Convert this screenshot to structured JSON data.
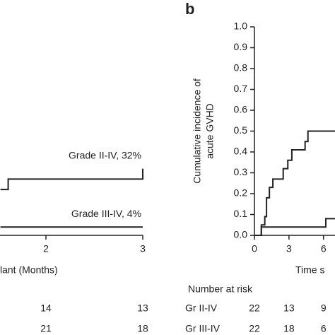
{
  "chart_data": [
    {
      "type": "line",
      "x_label": "lant (Months)",
      "xlim": [
        1,
        3
      ],
      "ylim": [
        0,
        1
      ],
      "xticks": [
        2,
        3
      ],
      "series": [
        {
          "name": "Grade II-IV, 32%",
          "color": "#222222",
          "x": [
            1.53,
            1.61,
            1.61,
            3,
            3
          ],
          "values": [
            0.22,
            0.22,
            0.27,
            0.27,
            0.32
          ]
        },
        {
          "name": "Grade III-IV, 4%",
          "color": "#222222",
          "x": [
            1.53,
            3
          ],
          "values": [
            0.04,
            0.04
          ]
        }
      ],
      "risk_table": {
        "times": [
          2,
          3
        ],
        "rows": [
          {
            "values": [
              14,
              13
            ]
          },
          {
            "values": [
              21,
              18
            ]
          }
        ]
      }
    },
    {
      "type": "line",
      "panel_label": "b",
      "y_label": [
        "Cumulative incidence of",
        "acute GVHD"
      ],
      "x_label": "Time s",
      "xlim": [
        0,
        7
      ],
      "ylim": [
        0,
        1
      ],
      "xticks": [
        0,
        3,
        6
      ],
      "yticks": [
        {
          "value": 0,
          "label": "0.0"
        },
        0.1,
        0.2,
        0.3,
        0.4,
        0.5,
        0.6,
        0.7,
        0.8,
        0.9,
        {
          "value": 1,
          "label": "1.0"
        }
      ],
      "series": [
        {
          "color": "#222222",
          "x": [
            0,
            0.6,
            0.6,
            0.9,
            0.9,
            1.05,
            1.05,
            1.3,
            1.3,
            1.6,
            1.6,
            2.5,
            2.5,
            2.9,
            2.9,
            3.25,
            3.25,
            4.4,
            4.4,
            4.65,
            4.65,
            7
          ],
          "values": [
            0,
            0,
            0.05,
            0.05,
            0.09,
            0.09,
            0.18,
            0.18,
            0.23,
            0.23,
            0.27,
            0.27,
            0.32,
            0.32,
            0.36,
            0.36,
            0.41,
            0.41,
            0.45,
            0.45,
            0.5,
            0.5
          ]
        },
        {
          "color": "#222222",
          "x": [
            0,
            0.6,
            0.6,
            6.2,
            6.2,
            7
          ],
          "values": [
            0,
            0,
            0.04,
            0.04,
            0.08,
            0.08
          ]
        }
      ],
      "risk_table": {
        "title": "Number at risk",
        "times": [
          0,
          3,
          6
        ],
        "rows": [
          {
            "name": "Gr II-IV",
            "values": [
              22,
              13,
              9
            ]
          },
          {
            "name": "Gr III-IV",
            "values": [
              22,
              18,
              6
            ]
          }
        ]
      }
    }
  ]
}
